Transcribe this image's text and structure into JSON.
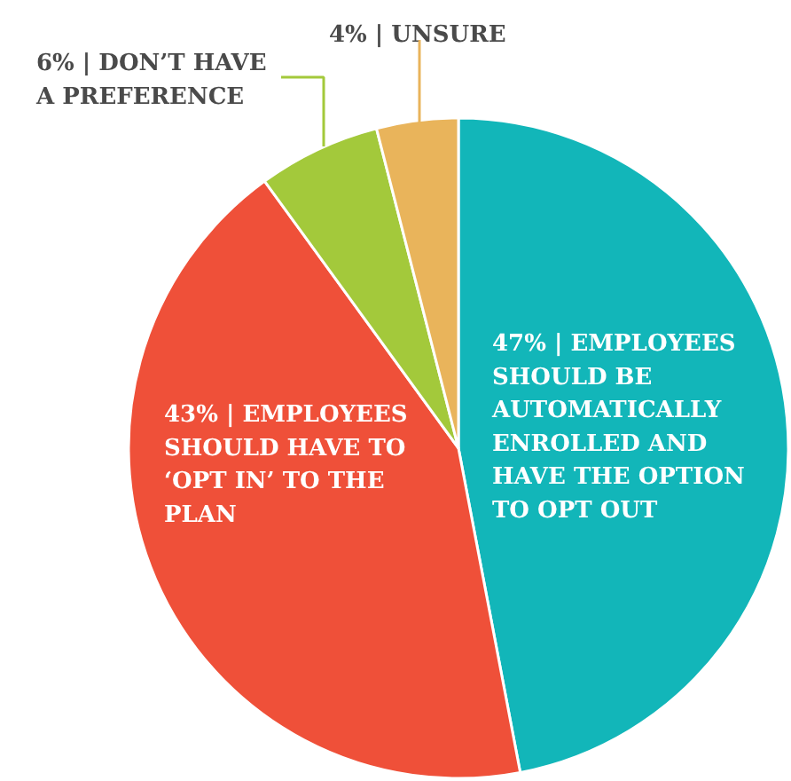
{
  "chart_data": {
    "type": "pie",
    "categories": [
      "47% | EMPLOYEES\nSHOULD BE\nAUTOMATICALLY\nENROLLED AND\nHAVE THE OPTION\nTO OPT OUT",
      "43% | EMPLOYEES\nSHOULD HAVE TO\n‘OPT IN’ TO THE\nPLAN",
      "6% | DON’T HAVE\nA PREFERENCE",
      "4% | UNSURE"
    ],
    "values": [
      47,
      43,
      6,
      4
    ],
    "colors": [
      "#12b6b9",
      "#ef5039",
      "#a3c93b",
      "#e9b45b"
    ]
  }
}
